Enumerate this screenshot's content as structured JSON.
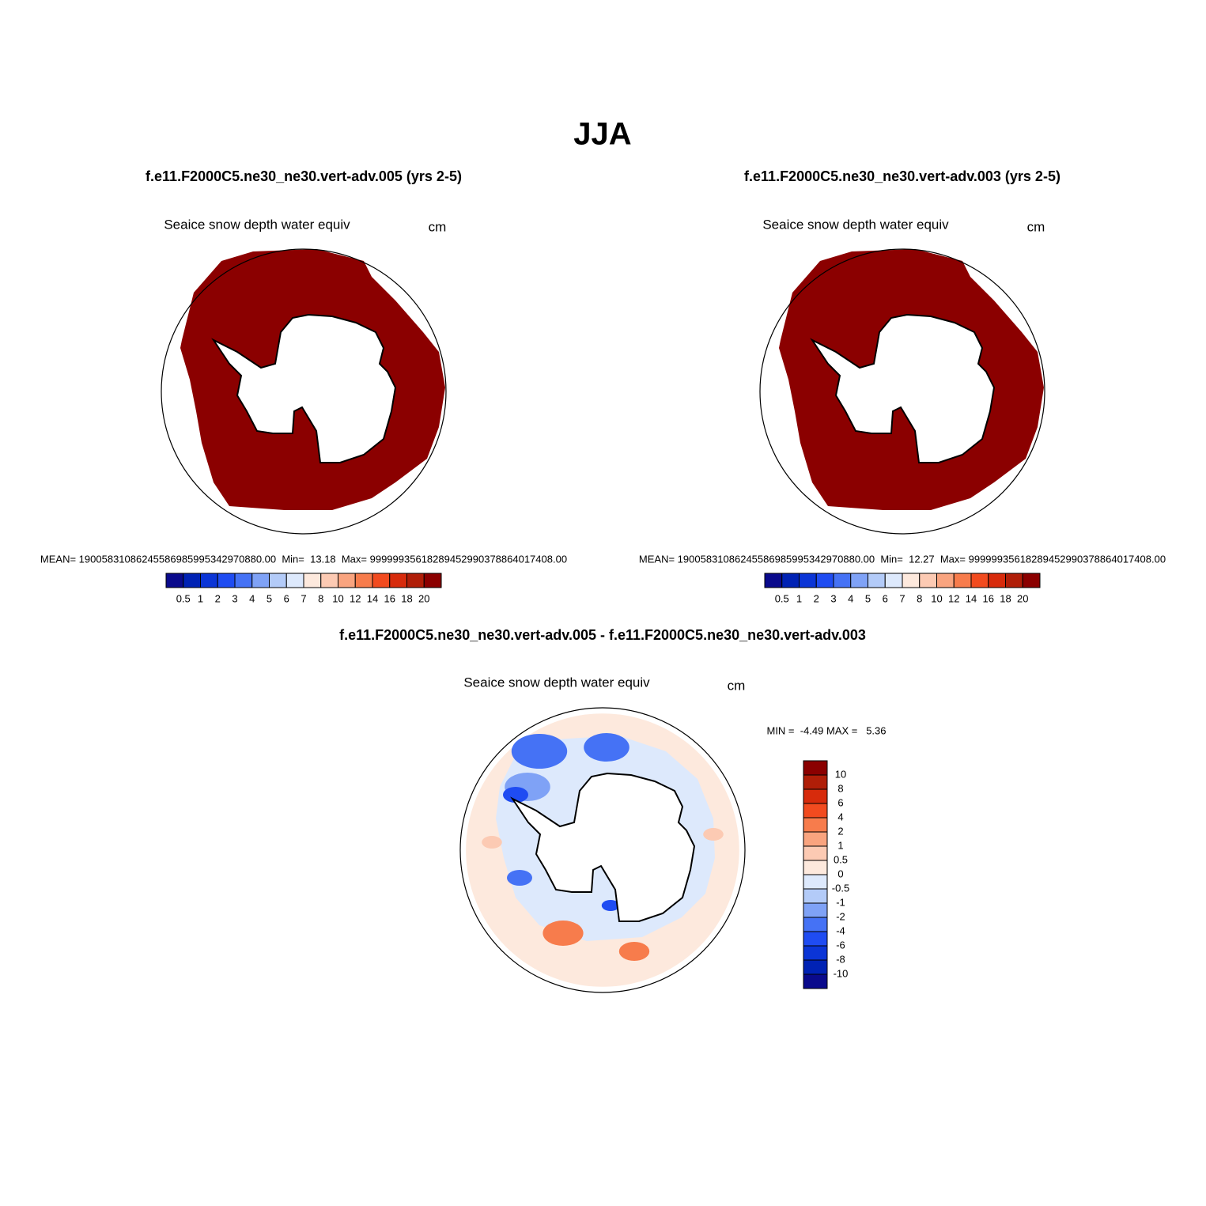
{
  "title": "JJA",
  "panels": [
    {
      "title": "f.e11.F2000C5.ne30_ne30.vert-adv.005 (yrs 2-5)",
      "variable": "Seaice snow depth water equiv",
      "units": "cm",
      "stats": "MEAN= 19005831086245586985995342970880.00  Min=  13.18  Max= 99999935618289452990378864017408.00",
      "colorbar": {
        "labels": [
          0.5,
          1,
          2,
          3,
          4,
          5,
          6,
          7,
          8,
          10,
          12,
          14,
          16,
          18,
          20
        ],
        "colors": [
          "#0a0a8c",
          "#0022b4",
          "#0b35d6",
          "#1f4cf2",
          "#4572f5",
          "#7fa2f6",
          "#b3cbf8",
          "#dde9fc",
          "#fde9dd",
          "#fccab3",
          "#f9a47f",
          "#f77c4c",
          "#f24b1f",
          "#d72b0c",
          "#b01e08",
          "#8b0000"
        ]
      }
    },
    {
      "title": "f.e11.F2000C5.ne30_ne30.vert-adv.003 (yrs 2-5)",
      "variable": "Seaice snow depth water equiv",
      "units": "cm",
      "stats": "MEAN= 19005831086245586985995342970880.00  Min=  12.27  Max= 99999935618289452990378864017408.00",
      "colorbar": {
        "labels": [
          0.5,
          1,
          2,
          3,
          4,
          5,
          6,
          7,
          8,
          10,
          12,
          14,
          16,
          18,
          20
        ],
        "colors": [
          "#0a0a8c",
          "#0022b4",
          "#0b35d6",
          "#1f4cf2",
          "#4572f5",
          "#7fa2f6",
          "#b3cbf8",
          "#dde9fc",
          "#fde9dd",
          "#fccab3",
          "#f9a47f",
          "#f77c4c",
          "#f24b1f",
          "#d72b0c",
          "#b01e08",
          "#8b0000"
        ]
      }
    },
    {
      "title": "f.e11.F2000C5.ne30_ne30.vert-adv.005 - f.e11.F2000C5.ne30_ne30.vert-adv.003",
      "variable": "Seaice snow depth water equiv",
      "units": "cm",
      "stats": "MIN =  -4.49 MAX =   5.36",
      "colorbar": {
        "labels": [
          10,
          8,
          6,
          4,
          2,
          1,
          0.5,
          0,
          -0.5,
          -1,
          -2,
          -4,
          -6,
          -8,
          -10
        ],
        "colors": [
          "#8b0000",
          "#b01e08",
          "#d72b0c",
          "#f24b1f",
          "#f77c4c",
          "#f9a47f",
          "#fccab3",
          "#fde9dd",
          "#dde9fc",
          "#b3cbf8",
          "#7fa2f6",
          "#4572f5",
          "#1f4cf2",
          "#0b35d6",
          "#0022b4",
          "#0a0a8c"
        ]
      }
    }
  ]
}
